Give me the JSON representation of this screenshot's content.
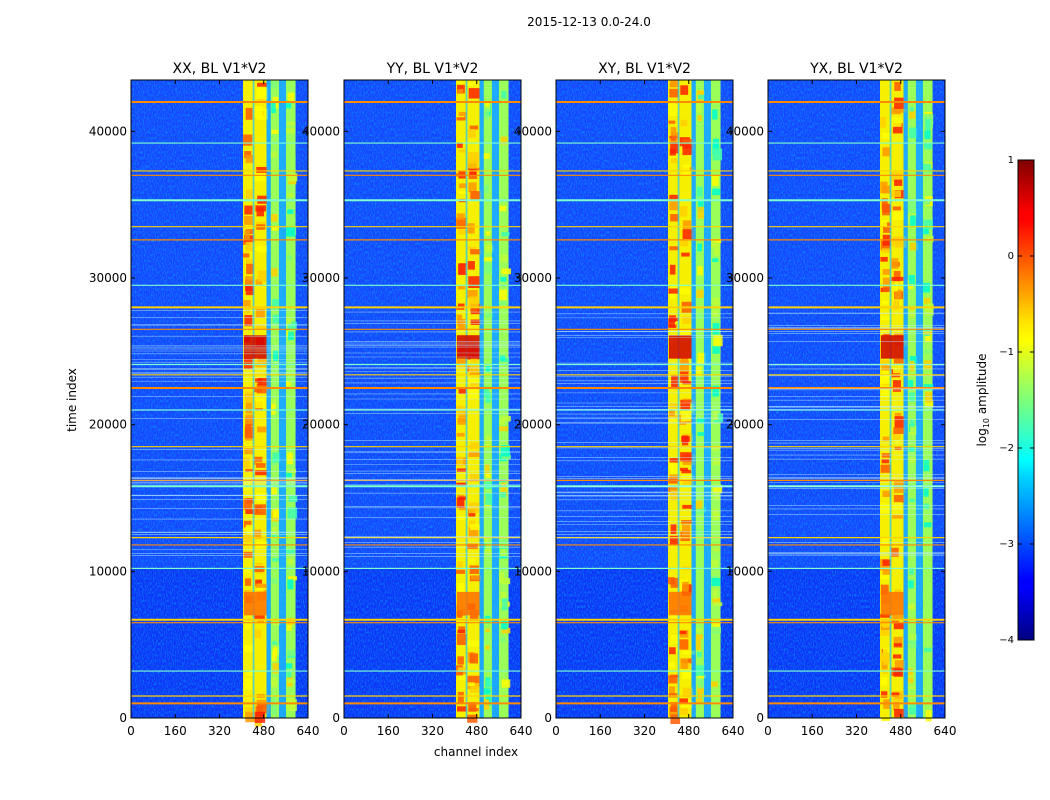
{
  "chart_data": {
    "type": "heatmap",
    "suptitle": "2015-12-13 0.0-24.0",
    "xlabel": "channel index",
    "ylabel": "time index",
    "xlim": [
      0,
      640
    ],
    "ylim": [
      0,
      43500
    ],
    "xticks": [
      0,
      160,
      320,
      480,
      640
    ],
    "yticks": [
      0,
      10000,
      20000,
      30000,
      40000
    ],
    "panels": [
      {
        "id": "xx",
        "title": "XX, BL V1*V2"
      },
      {
        "id": "yy",
        "title": "YY, BL V1*V2"
      },
      {
        "id": "xy",
        "title": "XY, BL V1*V2"
      },
      {
        "id": "yx",
        "title": "YX, BL V1*V2"
      }
    ],
    "colorbar": {
      "label": "log10 amplitude",
      "label_base": "log",
      "label_sub": "10",
      "label_rest": " amplitude",
      "range": [
        -4,
        1
      ],
      "ticks": [
        1,
        0,
        -1,
        -2,
        -3,
        -4
      ],
      "tick_labels": [
        "1",
        "0",
        "−1",
        "−2",
        "−3",
        "−4"
      ],
      "colormap": "jet"
    },
    "strong_band_channels": [
      [
        405,
        445
      ],
      [
        445,
        490
      ],
      [
        505,
        535
      ],
      [
        560,
        595
      ]
    ],
    "horizontal_rfi_rows": [
      1000,
      1500,
      3200,
      6500,
      6700,
      10200,
      11800,
      12300,
      15800,
      16200,
      18500,
      21000,
      22500,
      23400,
      24100,
      26500,
      28000,
      29500,
      32600,
      33500,
      35300,
      37000,
      37300,
      39200,
      42000
    ],
    "burst_rows": [
      24500,
      7000
    ]
  }
}
